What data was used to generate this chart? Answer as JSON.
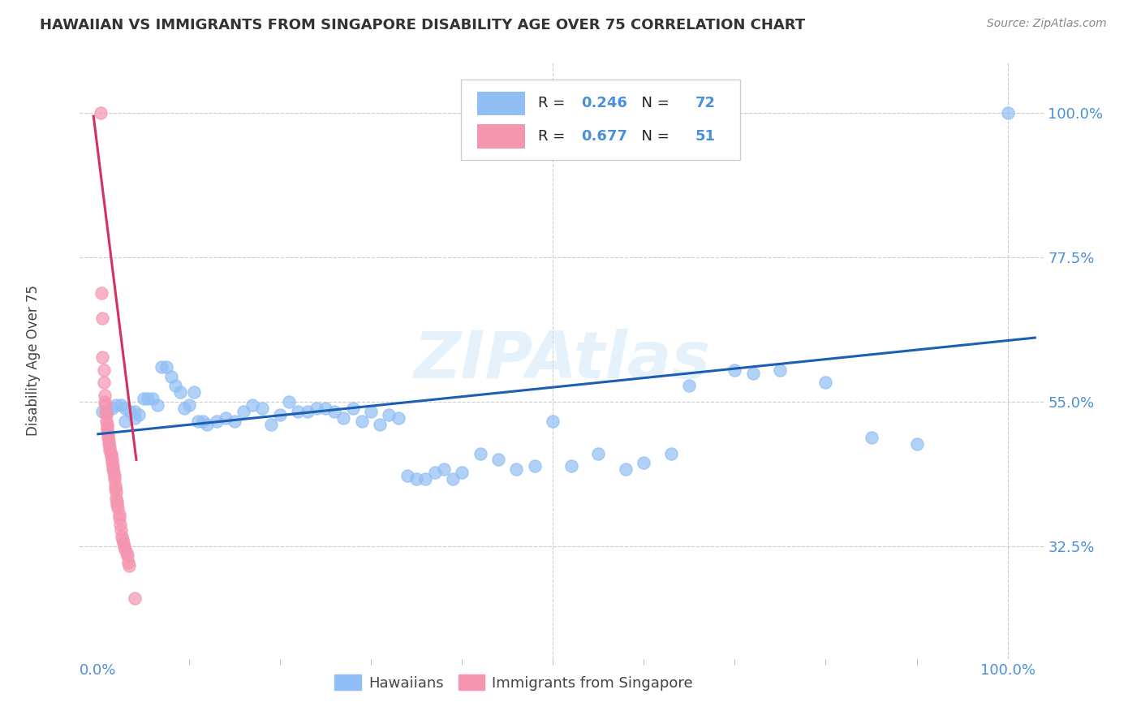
{
  "title": "HAWAIIAN VS IMMIGRANTS FROM SINGAPORE DISABILITY AGE OVER 75 CORRELATION CHART",
  "source_text": "Source: ZipAtlas.com",
  "ylabel": "Disability Age Over 75",
  "xlim": [
    -0.02,
    1.04
  ],
  "ylim": [
    0.15,
    1.08
  ],
  "ytick_vals": [
    0.325,
    0.55,
    0.775,
    1.0
  ],
  "ytick_labels": [
    "32.5%",
    "55.0%",
    "77.5%",
    "100.0%"
  ],
  "xtick_vals": [
    0.0,
    1.0
  ],
  "xtick_labels": [
    "0.0%",
    "100.0%"
  ],
  "grid_color": "#cccccc",
  "background_color": "#ffffff",
  "tick_color": "#4a90d9",
  "r1": "0.246",
  "n1": "72",
  "r2": "0.677",
  "n2": "51",
  "hawaiian_color": "#90bef5",
  "singapore_color": "#f595b0",
  "trend_color_hawaiian": "#1a5fb4",
  "trend_color_singapore": "#d63060",
  "legend_label1": "Hawaiians",
  "legend_label2": "Immigrants from Singapore",
  "watermark": "ZIPAtlas",
  "hawaiian_x": [
    0.005,
    0.01,
    0.015,
    0.02,
    0.025,
    0.03,
    0.03,
    0.035,
    0.04,
    0.04,
    0.045,
    0.05,
    0.055,
    0.06,
    0.065,
    0.07,
    0.075,
    0.08,
    0.085,
    0.09,
    0.095,
    0.1,
    0.105,
    0.11,
    0.115,
    0.12,
    0.13,
    0.14,
    0.15,
    0.16,
    0.17,
    0.18,
    0.19,
    0.2,
    0.21,
    0.22,
    0.23,
    0.24,
    0.25,
    0.26,
    0.27,
    0.28,
    0.29,
    0.3,
    0.31,
    0.32,
    0.33,
    0.34,
    0.35,
    0.36,
    0.37,
    0.38,
    0.39,
    0.4,
    0.42,
    0.44,
    0.46,
    0.48,
    0.5,
    0.52,
    0.55,
    0.58,
    0.6,
    0.63,
    0.65,
    0.7,
    0.72,
    0.75,
    0.8,
    0.85,
    0.9,
    1.0
  ],
  "hawaiian_y": [
    0.535,
    0.535,
    0.54,
    0.545,
    0.545,
    0.54,
    0.52,
    0.535,
    0.535,
    0.525,
    0.53,
    0.555,
    0.555,
    0.555,
    0.545,
    0.605,
    0.605,
    0.59,
    0.575,
    0.565,
    0.54,
    0.545,
    0.565,
    0.52,
    0.52,
    0.515,
    0.52,
    0.525,
    0.52,
    0.535,
    0.545,
    0.54,
    0.515,
    0.53,
    0.55,
    0.535,
    0.535,
    0.54,
    0.54,
    0.535,
    0.525,
    0.54,
    0.52,
    0.535,
    0.515,
    0.53,
    0.525,
    0.435,
    0.43,
    0.43,
    0.44,
    0.445,
    0.43,
    0.44,
    0.47,
    0.46,
    0.445,
    0.45,
    0.52,
    0.45,
    0.47,
    0.445,
    0.455,
    0.47,
    0.575,
    0.6,
    0.595,
    0.6,
    0.58,
    0.495,
    0.485,
    1.0
  ],
  "singapore_x": [
    0.003,
    0.004,
    0.005,
    0.005,
    0.006,
    0.006,
    0.007,
    0.007,
    0.008,
    0.008,
    0.009,
    0.009,
    0.01,
    0.01,
    0.01,
    0.011,
    0.011,
    0.012,
    0.012,
    0.013,
    0.013,
    0.014,
    0.014,
    0.015,
    0.015,
    0.016,
    0.016,
    0.017,
    0.018,
    0.018,
    0.019,
    0.019,
    0.02,
    0.02,
    0.021,
    0.021,
    0.022,
    0.023,
    0.023,
    0.024,
    0.025,
    0.026,
    0.027,
    0.028,
    0.029,
    0.03,
    0.031,
    0.032,
    0.033,
    0.034,
    0.04
  ],
  "singapore_y": [
    1.0,
    0.72,
    0.68,
    0.62,
    0.6,
    0.58,
    0.56,
    0.55,
    0.545,
    0.535,
    0.53,
    0.52,
    0.515,
    0.51,
    0.505,
    0.5,
    0.495,
    0.49,
    0.485,
    0.48,
    0.475,
    0.47,
    0.465,
    0.46,
    0.455,
    0.45,
    0.445,
    0.44,
    0.435,
    0.43,
    0.42,
    0.415,
    0.41,
    0.4,
    0.395,
    0.39,
    0.385,
    0.375,
    0.37,
    0.36,
    0.35,
    0.34,
    0.335,
    0.33,
    0.325,
    0.32,
    0.315,
    0.31,
    0.3,
    0.295,
    0.245
  ],
  "sg_trend_x_start": -0.005,
  "sg_trend_x_end": 0.042,
  "sg_trend_y_start": 0.995,
  "sg_trend_y_end": 0.46,
  "haw_trend_x_start": 0.0,
  "haw_trend_x_end": 1.03,
  "haw_trend_y_start": 0.5,
  "haw_trend_y_end": 0.65
}
